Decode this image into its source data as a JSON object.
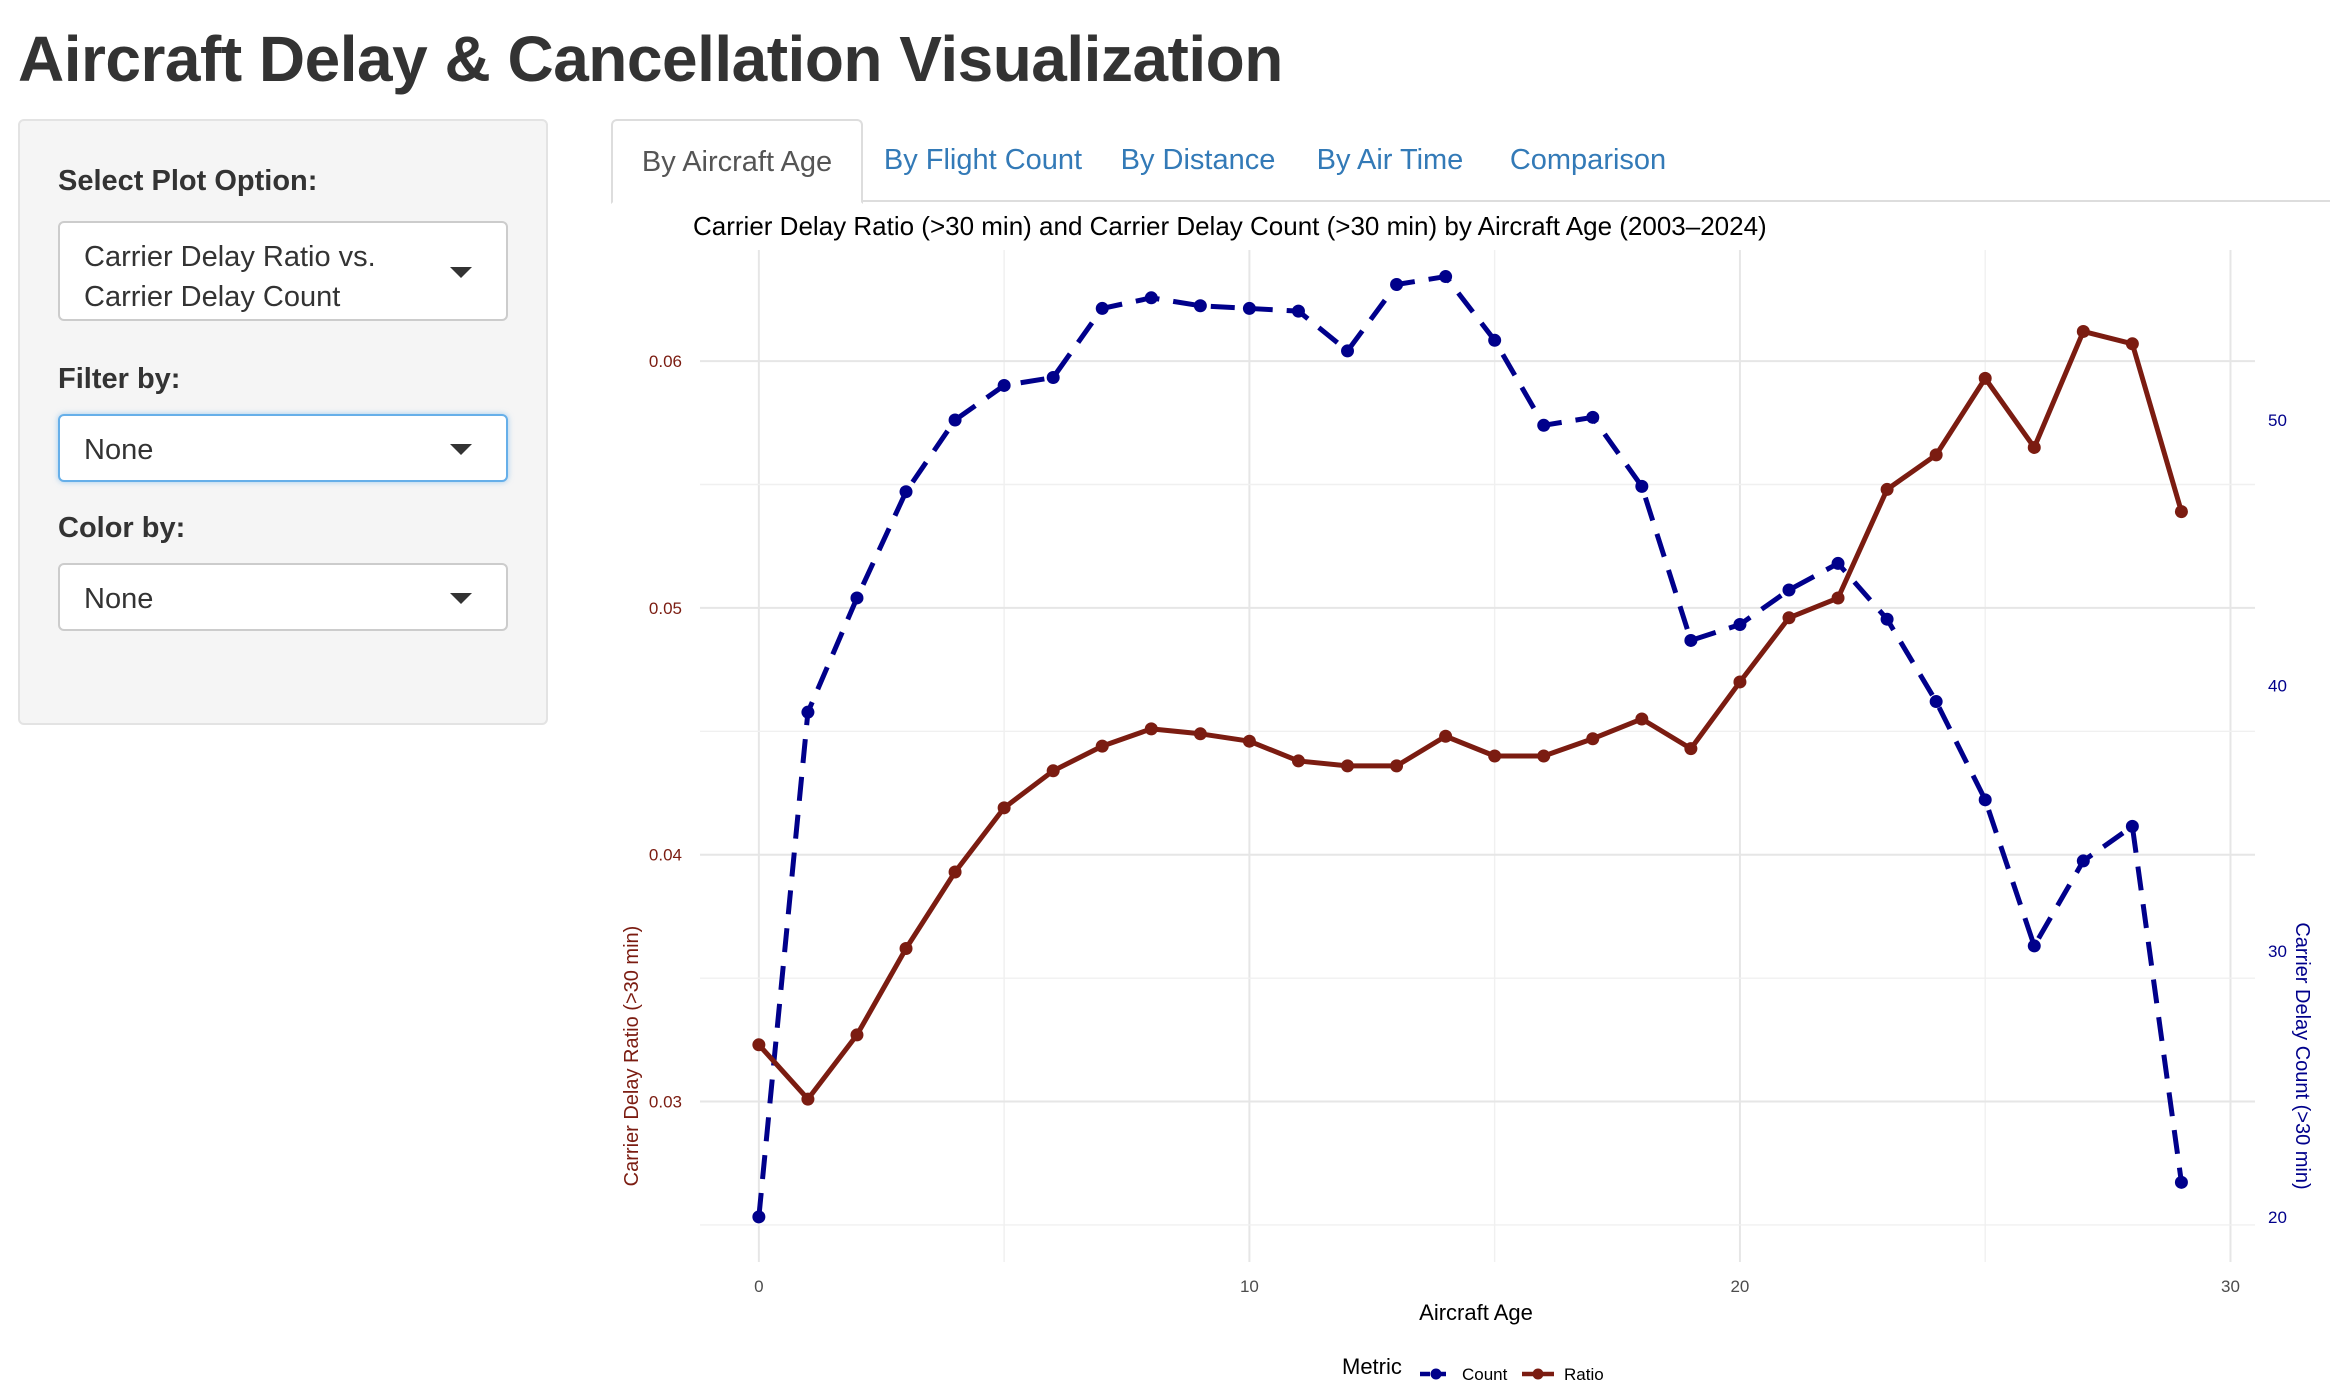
{
  "app": {
    "title": "Aircraft Delay & Cancellation Visualization"
  },
  "sidebar": {
    "plot_option_label": "Select Plot Option:",
    "plot_option_value": "Carrier Delay Ratio vs. Carrier Delay Count",
    "filter_label": "Filter by:",
    "filter_value": "None",
    "color_label": "Color by:",
    "color_value": "None"
  },
  "tabs": [
    {
      "label": "By Aircraft Age",
      "active": true
    },
    {
      "label": "By Flight Count",
      "active": false
    },
    {
      "label": "By Distance",
      "active": false
    },
    {
      "label": "By Air Time",
      "active": false
    },
    {
      "label": "Comparison",
      "active": false
    }
  ],
  "chart_data": {
    "type": "line",
    "title": "Carrier Delay Ratio (>30 min) and Carrier Delay Count (>30 min) by Aircraft Age (2003–2024)",
    "xlabel": "Aircraft Age",
    "ylabel_left": "Carrier Delay Ratio (>30 min)",
    "ylabel_right": "Carrier Delay Count (>30 min)",
    "x_ticks": [
      0,
      10,
      20,
      30
    ],
    "y_left_ticks": [
      0.03,
      0.04,
      0.05,
      0.06
    ],
    "y_right_ticks": [
      20,
      30,
      40,
      50
    ],
    "xlim": [
      -1.2,
      30.5
    ],
    "ylim_left": [
      0.0235,
      0.0645
    ],
    "ylim_right": [
      18.3,
      56.4
    ],
    "grid": true,
    "legend": {
      "title": "Metric",
      "position": "bottom"
    },
    "colors": {
      "Count": "#00008b",
      "Ratio": "#7b1c11"
    },
    "x": [
      0,
      1,
      2,
      3,
      4,
      5,
      6,
      7,
      8,
      9,
      10,
      11,
      12,
      13,
      14,
      15,
      16,
      17,
      18,
      19,
      20,
      21,
      22,
      23,
      24,
      25,
      26,
      27,
      28,
      29
    ],
    "series": [
      {
        "name": "Count",
        "axis": "right",
        "style": "dashed",
        "values": [
          20.0,
          39.0,
          43.3,
          47.3,
          50.0,
          51.3,
          51.6,
          54.2,
          54.6,
          54.3,
          54.2,
          54.1,
          52.6,
          55.1,
          55.4,
          53.0,
          49.8,
          50.1,
          47.5,
          41.7,
          42.3,
          43.6,
          44.6,
          42.5,
          39.4,
          35.7,
          30.2,
          33.4,
          34.7,
          21.3
        ]
      },
      {
        "name": "Ratio",
        "axis": "left",
        "style": "solid",
        "values": [
          0.0323,
          0.0301,
          0.0327,
          0.0362,
          0.0393,
          0.0419,
          0.0434,
          0.0444,
          0.0451,
          0.0449,
          0.0446,
          0.0438,
          0.0436,
          0.0436,
          0.0448,
          0.044,
          0.044,
          0.0447,
          0.0455,
          0.0443,
          0.047,
          0.0496,
          0.0504,
          0.0548,
          0.0562,
          0.0593,
          0.0565,
          0.0612,
          0.0607,
          0.0539
        ]
      }
    ]
  }
}
